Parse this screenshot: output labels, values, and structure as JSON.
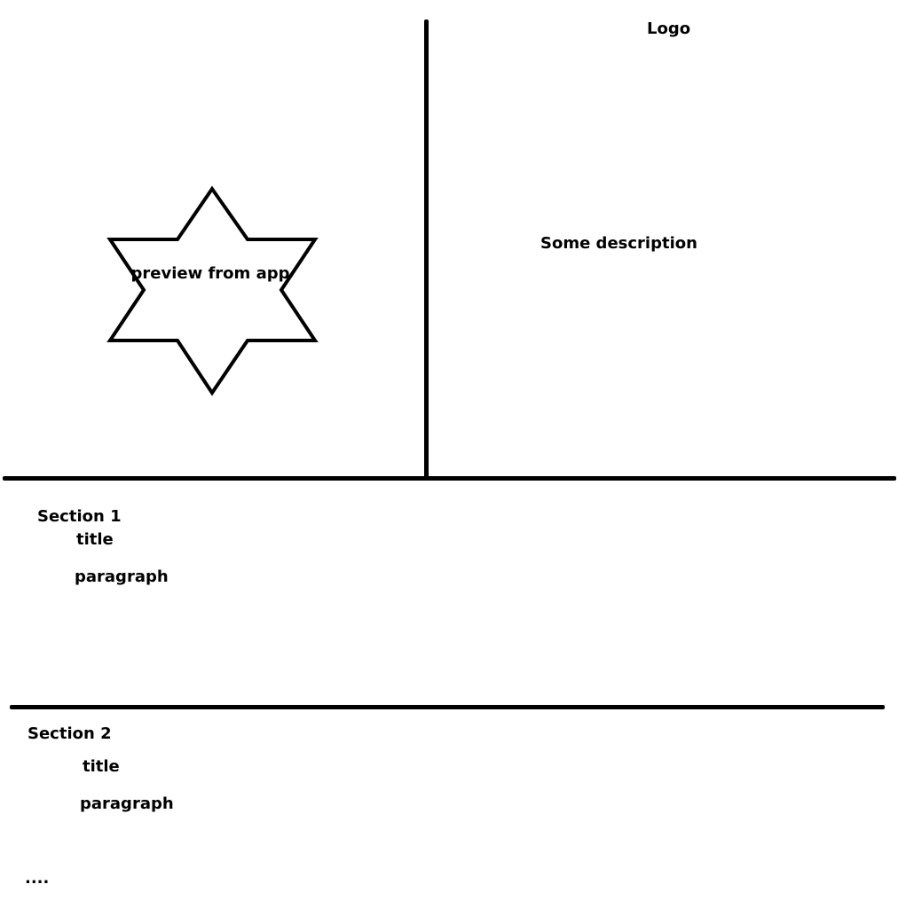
{
  "header": {
    "logo": "Logo",
    "description": "Some description",
    "preview": "preview from app"
  },
  "sections": [
    {
      "heading": "Section 1",
      "title": "title",
      "paragraph": "paragraph"
    },
    {
      "heading": "Section 2",
      "title": "title",
      "paragraph": "paragraph"
    }
  ],
  "more": "....",
  "colors": {
    "ink": "#000000",
    "background": "#ffffff"
  }
}
